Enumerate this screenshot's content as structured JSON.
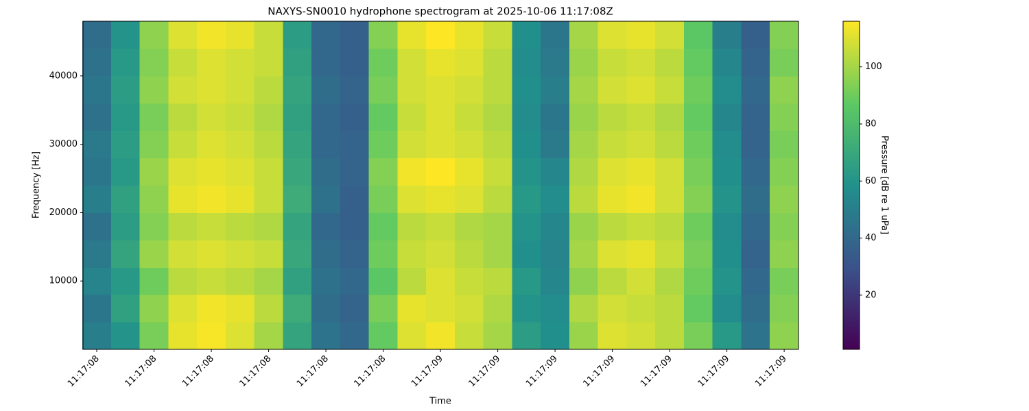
{
  "chart_data": {
    "type": "heatmap",
    "title": "NAXYS-SN0010 hydrophone spectrogram at 2025-10-06 11:17:08Z",
    "xlabel": "Time",
    "ylabel": "Frequency [Hz]",
    "colorbar_label": "Pressure [dB re 1 uPa]",
    "colormap": "viridis",
    "x": [
      8.4,
      8.45,
      8.5,
      8.55,
      8.6,
      8.65,
      8.7,
      8.75,
      8.8,
      8.85,
      8.9,
      8.95,
      9.0,
      9.05,
      9.1,
      9.15,
      9.2,
      9.25,
      9.3,
      9.35,
      9.4,
      9.45,
      9.5,
      9.55,
      9.6
    ],
    "y": [
      2000,
      6000,
      10000,
      14000,
      18000,
      22000,
      26000,
      30000,
      34000,
      38000,
      42000,
      46000
    ],
    "z": [
      [
        50,
        60,
        92,
        112,
        115,
        110,
        100,
        68,
        45,
        40,
        88,
        110,
        114,
        106,
        100,
        64,
        58,
        98,
        110,
        108,
        104,
        92,
        62,
        45,
        96
      ],
      [
        46,
        66,
        96,
        110,
        114,
        112,
        104,
        72,
        42,
        38,
        92,
        112,
        110,
        108,
        102,
        60,
        56,
        102,
        108,
        106,
        104,
        88,
        56,
        42,
        94
      ],
      [
        52,
        62,
        90,
        104,
        106,
        104,
        100,
        66,
        44,
        40,
        86,
        104,
        110,
        106,
        104,
        62,
        54,
        96,
        104,
        108,
        102,
        90,
        60,
        40,
        92
      ],
      [
        48,
        68,
        98,
        108,
        110,
        108,
        106,
        70,
        42,
        38,
        90,
        106,
        108,
        104,
        100,
        58,
        52,
        100,
        110,
        112,
        106,
        92,
        58,
        38,
        96
      ],
      [
        44,
        64,
        94,
        104,
        106,
        104,
        102,
        68,
        40,
        36,
        88,
        104,
        106,
        102,
        100,
        60,
        54,
        98,
        104,
        106,
        104,
        90,
        56,
        40,
        94
      ],
      [
        50,
        66,
        96,
        112,
        114,
        112,
        106,
        72,
        44,
        36,
        92,
        110,
        112,
        110,
        104,
        62,
        56,
        104,
        112,
        114,
        108,
        94,
        60,
        42,
        96
      ],
      [
        46,
        62,
        98,
        110,
        112,
        110,
        106,
        70,
        42,
        38,
        94,
        114,
        116,
        112,
        106,
        60,
        54,
        102,
        110,
        112,
        108,
        92,
        58,
        40,
        94
      ],
      [
        48,
        64,
        94,
        106,
        110,
        108,
        104,
        68,
        40,
        38,
        90,
        108,
        110,
        108,
        104,
        58,
        48,
        100,
        106,
        108,
        104,
        90,
        56,
        38,
        92
      ],
      [
        44,
        62,
        92,
        104,
        108,
        106,
        102,
        66,
        40,
        36,
        88,
        106,
        110,
        106,
        102,
        56,
        46,
        98,
        104,
        106,
        102,
        88,
        54,
        38,
        94
      ],
      [
        46,
        64,
        96,
        108,
        110,
        108,
        104,
        68,
        42,
        38,
        92,
        108,
        110,
        108,
        104,
        58,
        50,
        100,
        108,
        110,
        106,
        90,
        56,
        40,
        96
      ],
      [
        44,
        62,
        94,
        106,
        110,
        108,
        106,
        66,
        40,
        36,
        90,
        108,
        112,
        110,
        104,
        56,
        48,
        98,
        106,
        108,
        104,
        88,
        54,
        38,
        92
      ],
      [
        42,
        60,
        96,
        110,
        114,
        112,
        106,
        64,
        40,
        36,
        94,
        112,
        116,
        112,
        106,
        58,
        46,
        100,
        110,
        112,
        108,
        86,
        50,
        36,
        94
      ]
    ],
    "xlim": [
      8.376,
      9.625
    ],
    "xticks": [
      {
        "value": 8.4,
        "label": "11:17:08"
      },
      {
        "value": 8.5,
        "label": "11:17:08"
      },
      {
        "value": 8.6,
        "label": "11:17:08"
      },
      {
        "value": 8.7,
        "label": "11:17:08"
      },
      {
        "value": 8.8,
        "label": "11:17:08"
      },
      {
        "value": 8.9,
        "label": "11:17:08"
      },
      {
        "value": 9.0,
        "label": "11:17:09"
      },
      {
        "value": 9.1,
        "label": "11:17:09"
      },
      {
        "value": 9.2,
        "label": "11:17:09"
      },
      {
        "value": 9.3,
        "label": "11:17:09"
      },
      {
        "value": 9.4,
        "label": "11:17:09"
      },
      {
        "value": 9.5,
        "label": "11:17:09"
      },
      {
        "value": 9.6,
        "label": "11:17:09"
      }
    ],
    "ylim": [
      0,
      48000
    ],
    "yticks": [
      10000,
      20000,
      30000,
      40000
    ],
    "clim": [
      1,
      116
    ],
    "cticks": [
      20,
      40,
      60,
      80,
      100
    ]
  }
}
